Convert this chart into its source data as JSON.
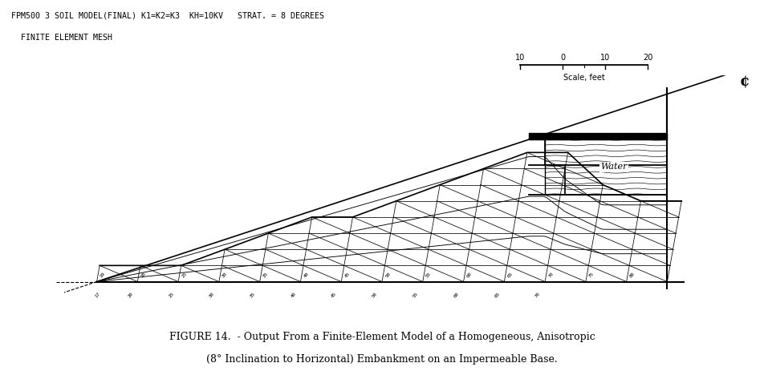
{
  "title_line1": "FPM500 3 SOIL MODEL(FINAL) K1=K2=K3  KH=10KV   STRAT. = 8 DEGREES",
  "title_line2": "  FINITE ELEMENT MESH",
  "caption_line1": "FIGURE 14.  - Output From a Finite-Element Model of a Homogeneous, Anisotropic",
  "caption_line2": "(8° Inclination to Horizontal) Embankment on an Impermeable Base.",
  "water_label": "Water",
  "scale_label": "Scale, feet",
  "scale_ticks": [
    10,
    0,
    10,
    20
  ],
  "centerline_char": "¢",
  "bg_color": "#ffffff",
  "line_color": "#000000"
}
